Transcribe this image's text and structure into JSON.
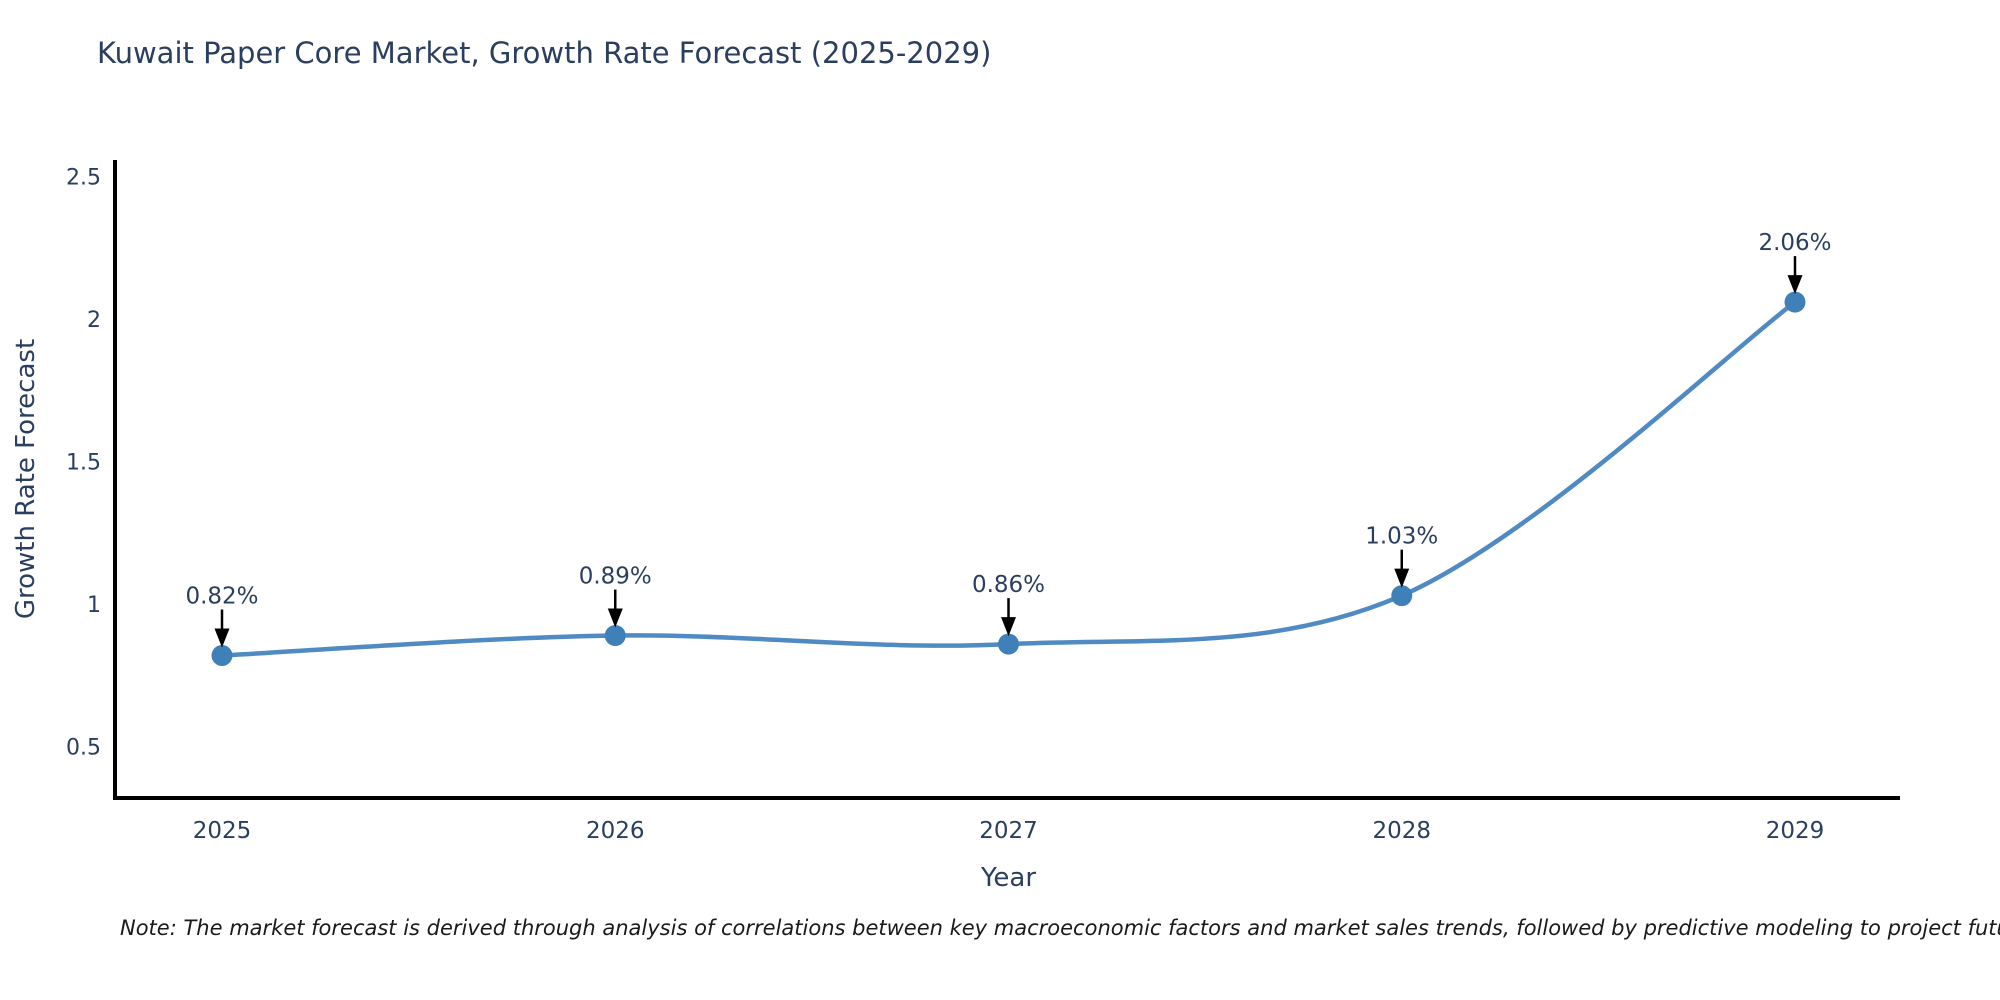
{
  "chart_data": {
    "type": "line",
    "title": "Kuwait Paper Core Market, Growth Rate Forecast (2025-2029)",
    "xlabel": "Year",
    "ylabel": "Growth Rate Forecast",
    "x": [
      2025,
      2026,
      2027,
      2028,
      2029
    ],
    "values": [
      0.82,
      0.89,
      0.86,
      1.03,
      2.06
    ],
    "point_labels": [
      "0.82%",
      "0.89%",
      "0.86%",
      "1.03%",
      "2.06%"
    ],
    "xtick_labels": [
      "2025",
      "2026",
      "2027",
      "2028",
      "2029"
    ],
    "yticks": [
      0.5,
      1,
      1.5,
      2,
      2.5
    ],
    "ytick_labels": [
      "0.5",
      "1",
      "1.5",
      "2",
      "2.5"
    ],
    "ylim": [
      0.32,
      2.56
    ],
    "grid": false,
    "legend": "none",
    "line_color": "#4f8ac2",
    "marker_color": "#4080b8",
    "axis_color": "#000000",
    "text_color": "#2a3f5f",
    "annotation_arrow_color": "#000000",
    "note": "Note: The market forecast is derived through analysis of correlations between key macroeconomic factors and market sales trends, followed by predictive modeling to project future sales"
  }
}
